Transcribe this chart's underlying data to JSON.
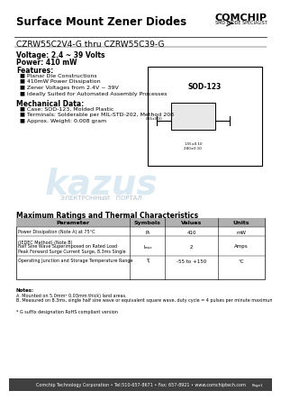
{
  "title": "Surface Mount Zener Diodes",
  "part_number": "CZRW55C2V4-G thru CZRW55C39-G",
  "voltage": "Voltage: 2.4 ~ 39 Volts",
  "power": "Power: 410 mW",
  "features_title": "Features:",
  "features": [
    "Planar Die Constructions",
    "410mW Power Dissipation",
    "Zener Voltages from 2.4V ~ 39V",
    "Ideally Suited for Automated Assembly Processes"
  ],
  "mech_title": "Mechanical Data:",
  "mech": [
    "Case: SOD-123, Molded Plastic",
    "Terminals: Solderable per MIL-STD-202, Method 208",
    "Approx. Weight: 0.008 gram"
  ],
  "table_title": "Maximum Ratings and Thermal Characteristics",
  "table_headers": [
    "Parameter",
    "Symbols",
    "Values",
    "Units"
  ],
  "table_rows": [
    [
      "Power Dissipation (Note A) at 75°C",
      "P₆",
      "410",
      "mW"
    ],
    [
      "Peak Forward Surge Current Surge, 8.3ms Single\nhalf Sine Wave Superimposed on Rated Load\n(JEDEC Method) (Note B)",
      "Iₘₐₓ",
      "2",
      "Amps"
    ],
    [
      "Operating Junction and Storage Temperature Range",
      "Tⱼ",
      "-55 to +150",
      "°C"
    ]
  ],
  "notes_title": "Notes:",
  "note_a": "A. Mounted on 5.0mm² 0.03mm thick) land areas.",
  "note_b": "B. Measured on 8.3ms, single half sine wave or equivalent square wave, duty cycle = 4 pulses per minute maximum.",
  "compliance": "* G suffix designation RoHS compliant version",
  "footer": "Comchip Technology Corporation • Tel:510-657-8671 • Fax: 657-8921 • www.comchiptech.com",
  "brand": "COMCHIP",
  "brand_sub": "SMD DIODE SPECIALIST",
  "package": "SOD-123",
  "bg_color": "#ffffff",
  "header_bg": "#d0d0d0",
  "table_header_bg": "#c0c0c0",
  "border_color": "#000000",
  "text_color": "#000000",
  "footer_bg": "#404040"
}
